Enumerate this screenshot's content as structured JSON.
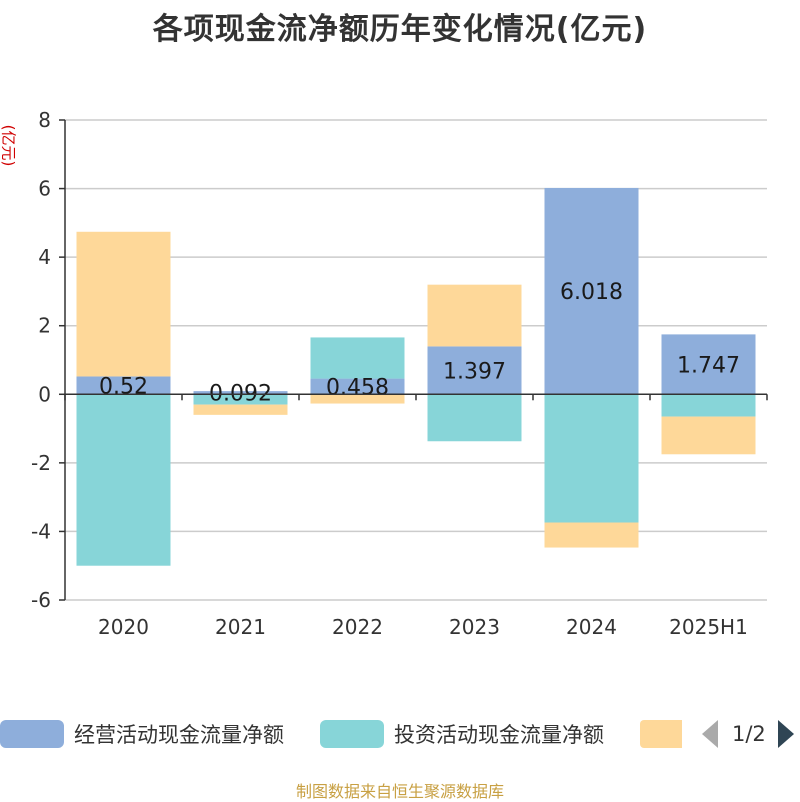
{
  "chart_data": {
    "type": "bar",
    "stacked": true,
    "title": "各项现金流净额历年变化情况(亿元)",
    "ylabel": "(亿元)",
    "categories": [
      "2020",
      "2021",
      "2022",
      "2023",
      "2024",
      "2025H1"
    ],
    "ylim": [
      -6,
      8
    ],
    "yticks": [
      -6,
      -4,
      -2,
      0,
      2,
      4,
      6,
      8
    ],
    "grid": true,
    "legend_position": "bottom",
    "series": [
      {
        "name": "经营活动现金流量净额",
        "color": "#8eaedb",
        "values": [
          0.52,
          0.092,
          0.458,
          1.397,
          6.018,
          1.747
        ],
        "labels": [
          "0.52",
          "0.092",
          "0.458",
          "1.397",
          "6.018",
          "1.747"
        ]
      },
      {
        "name": "投资活动现金流量净额",
        "color": "#87d5d8",
        "values": [
          -5.0,
          -0.3,
          1.2,
          -1.37,
          -3.74,
          -0.65
        ]
      },
      {
        "name": "",
        "color": "#fed899",
        "values": [
          4.22,
          -0.3,
          -0.27,
          1.8,
          -0.73,
          -1.1
        ]
      }
    ]
  },
  "legend": {
    "page": "1/2"
  },
  "source": "制图数据来自恒生聚源数据库"
}
